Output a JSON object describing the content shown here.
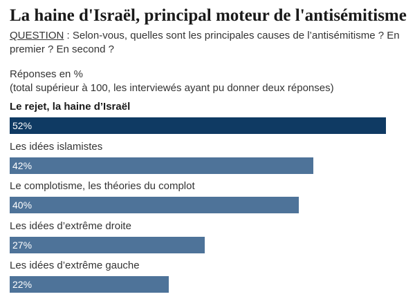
{
  "title": "La haine d'Israël, principal moteur de l'antisémitisme",
  "question": {
    "label": "QUESTION",
    "text": " : Selon-vous, quelles sont les principales causes de l’antisémitisme ? En premier ? En second ?"
  },
  "note": {
    "line1": "Réponses en %",
    "line2": "(total supérieur à 100, les interviewés ayant pu donner deux réponses)"
  },
  "colors": {
    "highlight": "#0f3a63",
    "default": "#4e7399"
  },
  "chart_data": {
    "type": "bar",
    "orientation": "horizontal",
    "title": "La haine d'Israël, principal moteur de l'antisémitisme",
    "categories": [
      "Le rejet, la haine d’Israël",
      "Les idées islamistes",
      "Le complotisme, les théories du complot",
      "Les idées d’extrême droite",
      "Les idées d’extrême gauche"
    ],
    "values": [
      52,
      42,
      40,
      27,
      22
    ],
    "value_labels": [
      "52%",
      "42%",
      "40%",
      "27%",
      "22%"
    ],
    "highlighted_index": 0,
    "xlim": [
      0,
      53
    ],
    "grid": false
  }
}
